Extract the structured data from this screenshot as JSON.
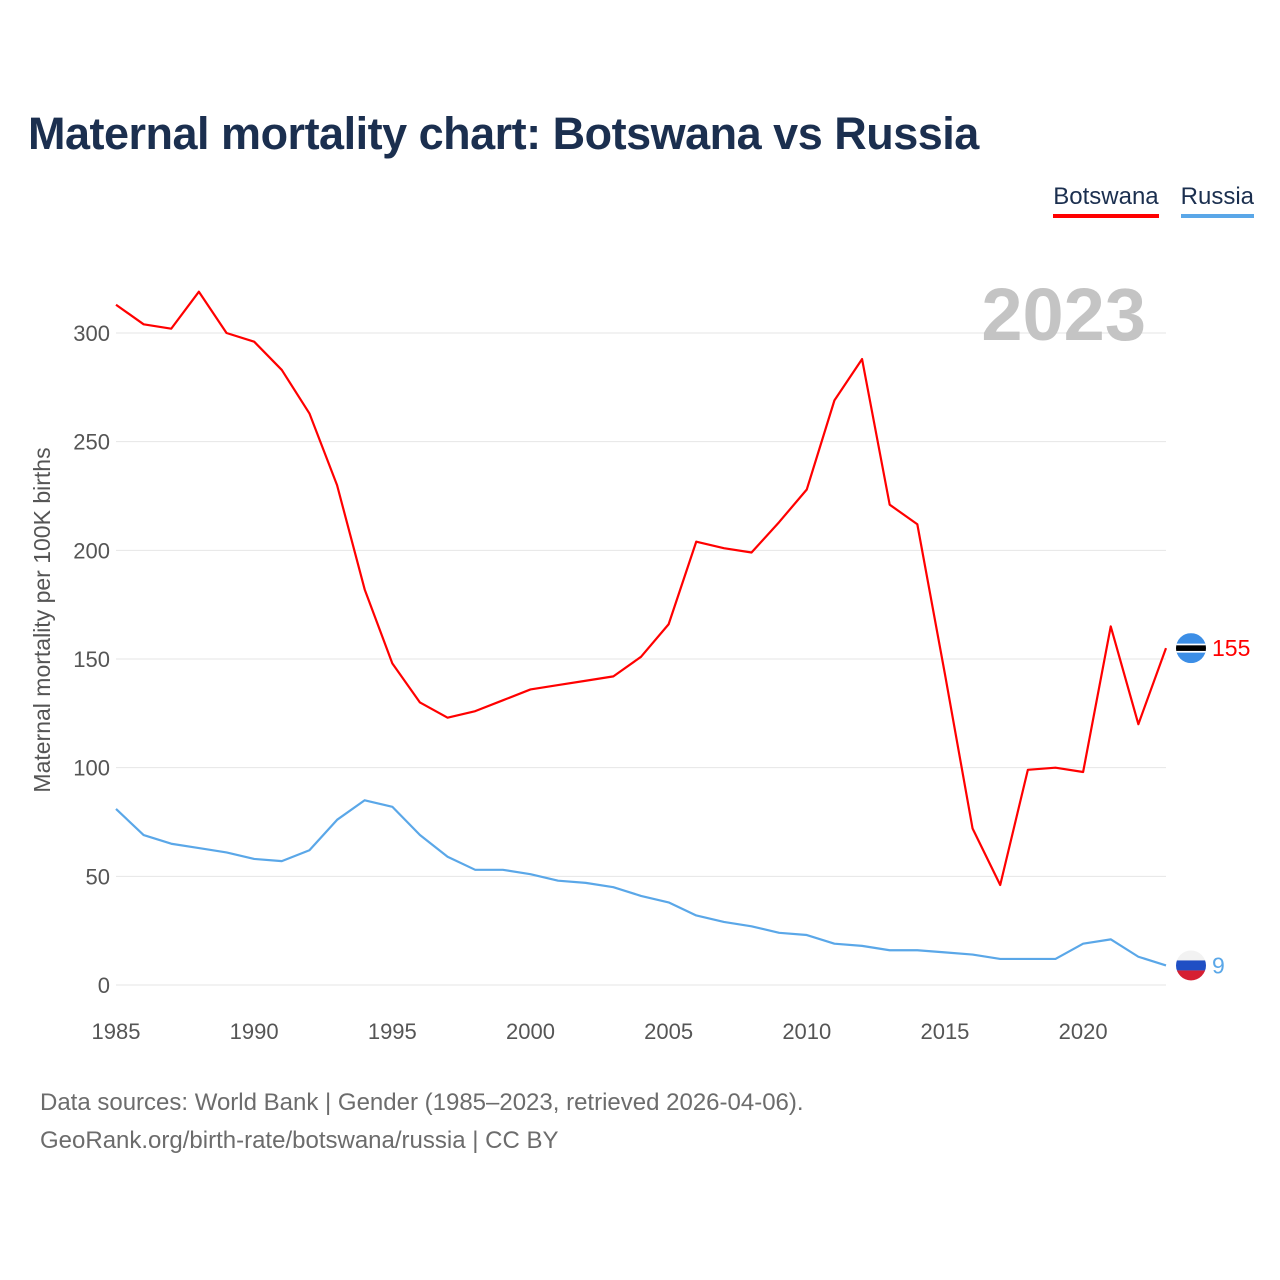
{
  "title": "Maternal mortality chart: Botswana vs Russia",
  "year_label": "2023",
  "footer": {
    "line1": "Data sources: World Bank | Gender (1985–2023, retrieved 2026-04-06).",
    "line2": "GeoRank.org/birth-rate/botswana/russia | CC BY"
  },
  "legend": [
    {
      "label": "Botswana",
      "color": "#ff0000"
    },
    {
      "label": "Russia",
      "color": "#5aa7e8"
    }
  ],
  "chart_data": {
    "type": "line",
    "title": "Maternal mortality chart: Botswana vs Russia",
    "xlabel": "",
    "ylabel": "Maternal mortality per 100K births",
    "xlim": [
      1985,
      2023
    ],
    "ylim": [
      0,
      300
    ],
    "xticks": [
      1985,
      1990,
      1995,
      2000,
      2005,
      2010,
      2015,
      2020
    ],
    "yticks": [
      0,
      50,
      100,
      150,
      200,
      250,
      300
    ],
    "grid": true,
    "legend_position": "top-right",
    "x": [
      1985,
      1986,
      1987,
      1988,
      1989,
      1990,
      1991,
      1992,
      1993,
      1994,
      1995,
      1996,
      1997,
      1998,
      1999,
      2000,
      2001,
      2002,
      2003,
      2004,
      2005,
      2006,
      2007,
      2008,
      2009,
      2010,
      2011,
      2012,
      2013,
      2014,
      2015,
      2016,
      2017,
      2018,
      2019,
      2020,
      2021,
      2022,
      2023
    ],
    "series": [
      {
        "name": "Botswana",
        "color": "#ff0000",
        "end_label": "155",
        "flag": "botswana",
        "values": [
          313,
          304,
          302,
          319,
          300,
          296,
          283,
          263,
          230,
          182,
          148,
          130,
          123,
          126,
          131,
          136,
          138,
          140,
          142,
          151,
          166,
          204,
          201,
          199,
          213,
          228,
          269,
          288,
          221,
          212,
          143,
          72,
          46,
          99,
          100,
          98,
          165,
          120,
          155
        ]
      },
      {
        "name": "Russia",
        "color": "#5aa7e8",
        "end_label": "9",
        "flag": "russia",
        "values": [
          81,
          69,
          65,
          63,
          61,
          58,
          57,
          62,
          76,
          85,
          82,
          69,
          59,
          53,
          53,
          51,
          48,
          47,
          45,
          41,
          38,
          32,
          29,
          27,
          24,
          23,
          19,
          18,
          16,
          16,
          15,
          14,
          12,
          12,
          12,
          19,
          21,
          13,
          9
        ]
      }
    ]
  }
}
